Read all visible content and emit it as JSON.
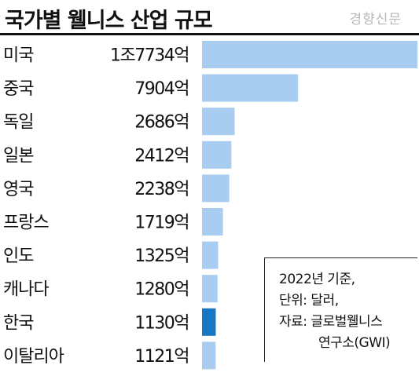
{
  "header": {
    "title": "국가별 웰니스 산업 규모",
    "watermark": "경향신문"
  },
  "note": {
    "line1": "2022년 기준,",
    "line2": "단위: 달러,",
    "line3": "자료: 글로벌웰니스",
    "line4": "연구소(GWI)"
  },
  "colors": {
    "bar": "#a8cdf0",
    "highlight": "#1877c4",
    "text": "#111111"
  },
  "chart_data": {
    "type": "bar",
    "orientation": "horizontal",
    "title": "국가별 웰니스 산업 규모",
    "unit": "달러",
    "highlight": "한국",
    "categories": [
      "미국",
      "중국",
      "독일",
      "일본",
      "영국",
      "프랑스",
      "인도",
      "캐나다",
      "한국",
      "이탈리아"
    ],
    "values": [
      17734,
      7904,
      2686,
      2412,
      2238,
      1719,
      1325,
      1280,
      1130,
      1121
    ],
    "value_labels": [
      "1조7734억",
      "7904억",
      "2686억",
      "2412억",
      "2238억",
      "1719억",
      "1325억",
      "1280억",
      "1130억",
      "1121억"
    ],
    "xlim": [
      0,
      17734
    ]
  }
}
